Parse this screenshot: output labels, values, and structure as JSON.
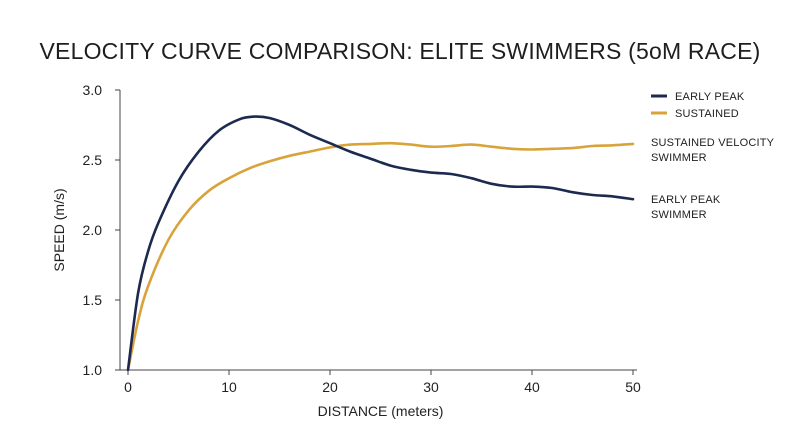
{
  "chart_data": {
    "type": "line",
    "title": "VELOCITY CURVE COMPARISON: ELITE SWIMMERS (5oM RACE)",
    "xlabel": "DISTANCE (meters)",
    "ylabel": "SPEED (m/s)",
    "xlim": [
      0,
      50
    ],
    "ylim": [
      1.0,
      3.0
    ],
    "xticks": [
      "0",
      "10",
      "20",
      "30",
      "40",
      "50"
    ],
    "yticks": [
      "1.0",
      "1.5",
      "2.0",
      "2.5",
      "3.0"
    ],
    "grid": false,
    "legend_position": "top-right",
    "series": [
      {
        "name": "EARLY PEAK",
        "color": "#1c2a4f",
        "x": [
          0,
          1,
          2,
          3,
          5,
          7,
          9,
          11,
          12.5,
          14,
          16,
          18,
          20,
          22,
          24,
          26,
          28,
          30,
          32,
          34,
          36,
          38,
          40,
          42,
          44,
          46,
          48,
          50
        ],
        "y": [
          1.0,
          1.55,
          1.85,
          2.05,
          2.35,
          2.56,
          2.71,
          2.79,
          2.81,
          2.8,
          2.75,
          2.68,
          2.62,
          2.56,
          2.51,
          2.46,
          2.43,
          2.41,
          2.4,
          2.37,
          2.33,
          2.31,
          2.31,
          2.3,
          2.27,
          2.25,
          2.24,
          2.22
        ]
      },
      {
        "name": "SUSTAINED",
        "color": "#d9a33b",
        "x": [
          0,
          1,
          2,
          4,
          6,
          8,
          10,
          12,
          14,
          16,
          18,
          20,
          22,
          24,
          26,
          28,
          30,
          32,
          34,
          36,
          38,
          40,
          42,
          44,
          46,
          48,
          50
        ],
        "y": [
          1.0,
          1.35,
          1.6,
          1.93,
          2.14,
          2.28,
          2.37,
          2.44,
          2.49,
          2.53,
          2.56,
          2.59,
          2.61,
          2.615,
          2.62,
          2.61,
          2.595,
          2.6,
          2.61,
          2.595,
          2.58,
          2.575,
          2.58,
          2.585,
          2.6,
          2.605,
          2.615
        ]
      }
    ],
    "annotations": [
      {
        "lines": [
          "SUSTAINED VELOCITY",
          "SWIMMER"
        ],
        "series": "SUSTAINED"
      },
      {
        "lines": [
          "EARLY PEAK",
          "SWIMMER"
        ],
        "series": "EARLY PEAK"
      }
    ]
  }
}
